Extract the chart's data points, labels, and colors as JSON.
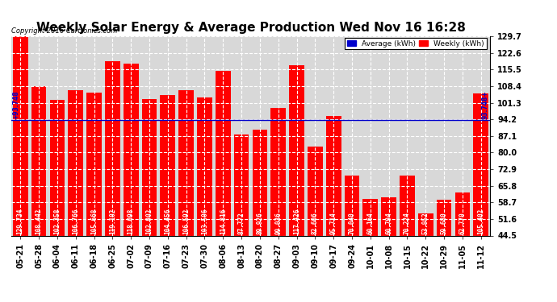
{
  "title": "Weekly Solar Energy & Average Production Wed Nov 16 16:28",
  "copyright": "Copyright 2016 Cartronics.com",
  "categories": [
    "05-21",
    "05-28",
    "06-04",
    "06-11",
    "06-18",
    "06-25",
    "07-02",
    "07-09",
    "07-16",
    "07-23",
    "07-30",
    "08-06",
    "08-13",
    "08-20",
    "08-27",
    "09-03",
    "09-10",
    "09-17",
    "09-24",
    "10-01",
    "10-08",
    "10-15",
    "10-22",
    "10-29",
    "11-05",
    "11-12"
  ],
  "values": [
    129.734,
    108.442,
    102.358,
    106.766,
    105.668,
    119.102,
    118.098,
    102.902,
    104.456,
    106.592,
    103.506,
    114.816,
    87.772,
    89.926,
    99.036,
    117.426,
    82.606,
    95.714,
    70.04,
    60.164,
    60.794,
    70.224,
    53.952,
    59.68,
    62.77,
    105.402
  ],
  "average_value": 93.748,
  "bar_color": "#FF0000",
  "average_line_color": "#0000CC",
  "background_color": "#FFFFFF",
  "plot_bg_color": "#D8D8D8",
  "grid_color": "#FFFFFF",
  "ylim_min": 44.5,
  "ylim_max": 129.7,
  "yticks": [
    44.5,
    51.6,
    58.7,
    65.8,
    72.9,
    80.0,
    87.1,
    94.2,
    101.3,
    108.4,
    115.5,
    122.6,
    129.7
  ],
  "avg_label": "Average (kWh)",
  "weekly_label": "Weekly (kWh)",
  "avg_legend_color": "#0000CC",
  "weekly_legend_color": "#FF0000",
  "title_fontsize": 11,
  "bar_value_fontsize": 5.5,
  "avg_annotation_left": "+93.748",
  "avg_annotation_right": "93.748+",
  "tick_fontsize": 7,
  "copyright_fontsize": 6
}
